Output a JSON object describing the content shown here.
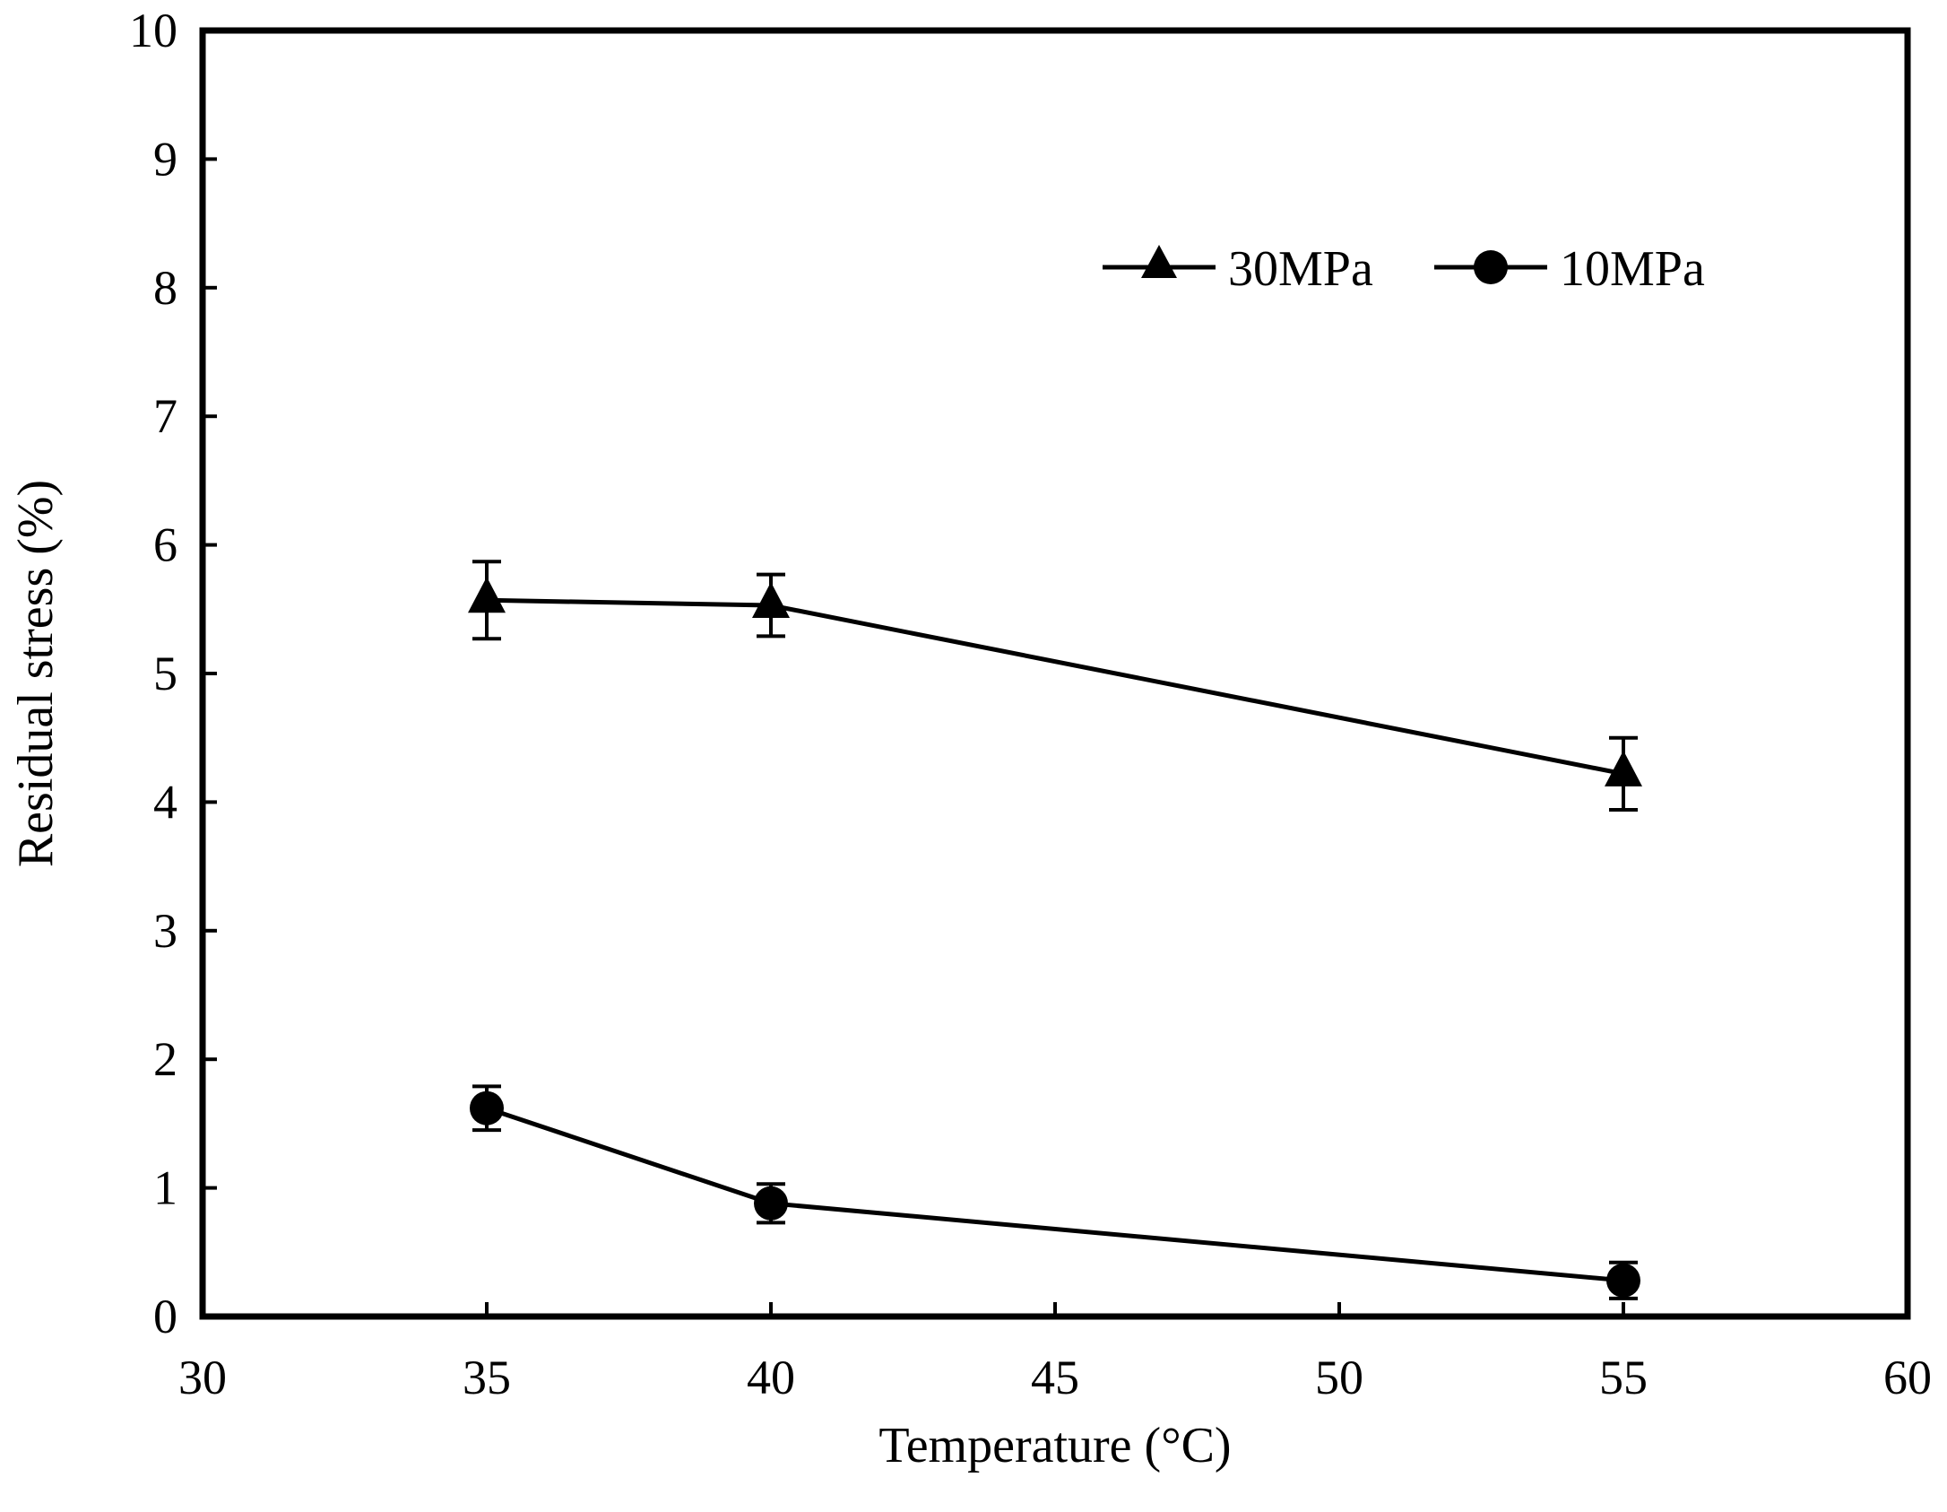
{
  "chart_data": {
    "type": "line",
    "title": "",
    "xlabel": "Temperature (°C)",
    "ylabel": "Residual stress (%)",
    "xlim": [
      30,
      60
    ],
    "ylim": [
      0,
      10
    ],
    "xticks": [
      30,
      35,
      40,
      45,
      50,
      55,
      60
    ],
    "yticks": [
      0,
      1,
      2,
      3,
      4,
      5,
      6,
      7,
      8,
      9,
      10
    ],
    "grid": false,
    "legend_position": "top-right",
    "series": [
      {
        "name": "30MPa",
        "marker": "triangle",
        "x": [
          35,
          40,
          55
        ],
        "y": [
          5.57,
          5.53,
          4.22
        ],
        "error": [
          0.3,
          0.24,
          0.28
        ]
      },
      {
        "name": "10MPa",
        "marker": "circle",
        "x": [
          35,
          40,
          55
        ],
        "y": [
          1.62,
          0.88,
          0.28
        ],
        "error": [
          0.17,
          0.15,
          0.14
        ]
      }
    ]
  }
}
